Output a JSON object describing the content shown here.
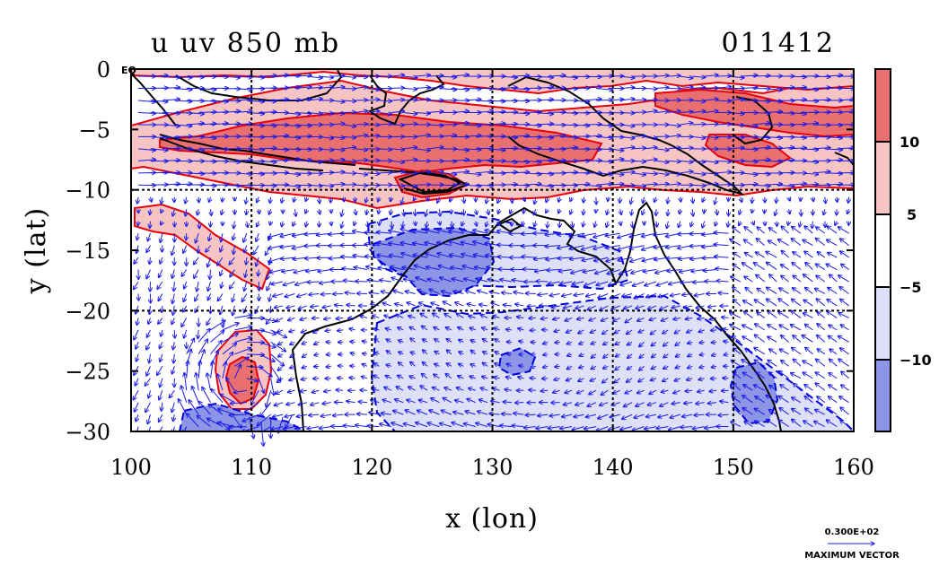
{
  "title_left": "u uv 850 mb",
  "title_right": "011412",
  "colors": {
    "pos_strong": "#e9706f",
    "pos_light": "#f7c4c4",
    "neg_light": "#dde0f7",
    "neg_strong": "#8c95e6",
    "pos_contour": "#e8000b",
    "neg_contour": "#0000dd",
    "vector": "#1a1ae6",
    "coast": "#000000"
  },
  "chart_data": {
    "type": "heatmap",
    "xlabel": "x (lon)",
    "ylabel": "y (lat)",
    "xlim": [
      100,
      160
    ],
    "ylim": [
      -30,
      0
    ],
    "x_ticks": [
      "100",
      "110",
      "120",
      "130",
      "140",
      "150",
      "160"
    ],
    "y_ticks": [
      "0",
      "−5",
      "−10",
      "−15",
      "−20",
      "−25",
      "−30"
    ],
    "y_tick_values": [
      0,
      -5,
      -10,
      -15,
      -20,
      -25,
      -30
    ],
    "x_tick_values": [
      100,
      110,
      120,
      130,
      140,
      150,
      160
    ],
    "equator_label": "EQ",
    "grid_lon": [
      110,
      120,
      130,
      140,
      150
    ],
    "grid_lat": [
      -10,
      -20
    ],
    "colorbar": {
      "labels": [
        "10",
        "5",
        "−5",
        "−10"
      ],
      "levels": [
        10,
        5,
        -5,
        -10
      ],
      "bands": [
        "pos_strong",
        "pos_light",
        "white",
        "neg_light",
        "neg_strong"
      ]
    },
    "max_vector": {
      "value": "0.300E+02",
      "label": "MAXIMUM VECTOR"
    }
  }
}
